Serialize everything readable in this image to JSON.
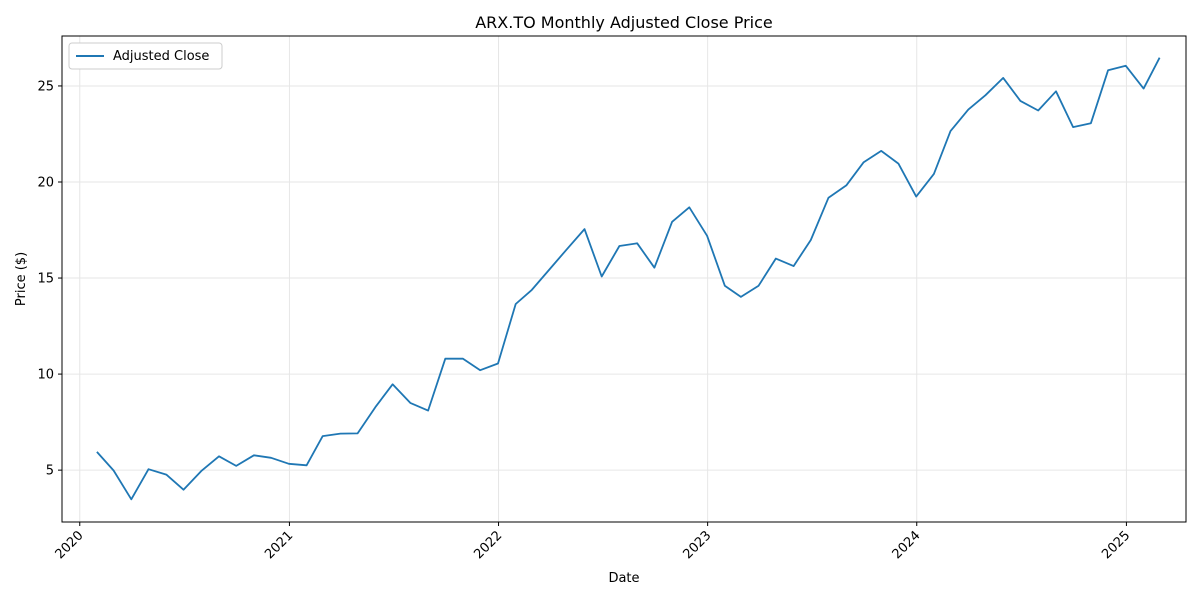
{
  "chart_data": {
    "type": "line",
    "title": "ARX.TO Monthly Adjusted Close Price",
    "xlabel": "Date",
    "ylabel": "Price ($)",
    "grid": true,
    "legend_position": "top-left",
    "color": "#1f77b4",
    "x_ticks": [
      "2020",
      "2021",
      "2022",
      "2023",
      "2024",
      "2025"
    ],
    "y_ticks": [
      5,
      10,
      15,
      20,
      25
    ],
    "xlim": [
      "2019-12-01",
      "2025-04-15"
    ],
    "ylim": [
      2.3,
      27.6
    ],
    "series": [
      {
        "name": "Adjusted Close",
        "x": [
          "2020-01-31",
          "2020-02-29",
          "2020-03-31",
          "2020-04-30",
          "2020-05-31",
          "2020-06-30",
          "2020-07-31",
          "2020-08-31",
          "2020-09-30",
          "2020-10-31",
          "2020-11-30",
          "2020-12-31",
          "2021-01-31",
          "2021-02-28",
          "2021-03-31",
          "2021-04-30",
          "2021-05-31",
          "2021-06-30",
          "2021-07-31",
          "2021-08-31",
          "2021-09-30",
          "2021-10-31",
          "2021-11-30",
          "2021-12-31",
          "2022-01-31",
          "2022-02-28",
          "2022-03-31",
          "2022-04-30",
          "2022-05-31",
          "2022-06-30",
          "2022-07-31",
          "2022-08-31",
          "2022-09-30",
          "2022-10-31",
          "2022-11-30",
          "2022-12-31",
          "2023-01-31",
          "2023-02-28",
          "2023-03-31",
          "2023-04-30",
          "2023-05-31",
          "2023-06-30",
          "2023-07-31",
          "2023-08-31",
          "2023-09-30",
          "2023-10-31",
          "2023-11-30",
          "2023-12-31",
          "2024-01-31",
          "2024-02-29",
          "2024-03-31",
          "2024-04-30",
          "2024-05-31",
          "2024-06-30",
          "2024-07-31",
          "2024-08-31",
          "2024-09-30",
          "2024-10-31",
          "2024-11-30",
          "2024-12-31",
          "2025-01-31",
          "2025-02-28"
        ],
        "y": [
          5.95,
          4.98,
          3.48,
          5.05,
          4.77,
          3.98,
          4.95,
          5.72,
          5.22,
          5.77,
          5.64,
          5.33,
          5.25,
          6.77,
          6.9,
          6.91,
          8.28,
          9.47,
          8.5,
          8.1,
          10.8,
          10.8,
          10.2,
          10.55,
          13.65,
          14.38,
          15.45,
          16.49,
          17.55,
          15.08,
          16.67,
          16.81,
          15.54,
          17.93,
          18.68,
          17.2,
          14.6,
          14.02,
          14.6,
          16.01,
          15.62,
          16.98,
          19.18,
          19.82,
          21.02,
          21.62,
          20.96,
          19.24,
          20.42,
          22.65,
          23.77,
          24.52,
          25.42,
          24.22,
          23.72,
          24.72,
          22.86,
          23.06,
          25.82,
          26.05,
          24.86,
          26.47
        ]
      }
    ]
  }
}
